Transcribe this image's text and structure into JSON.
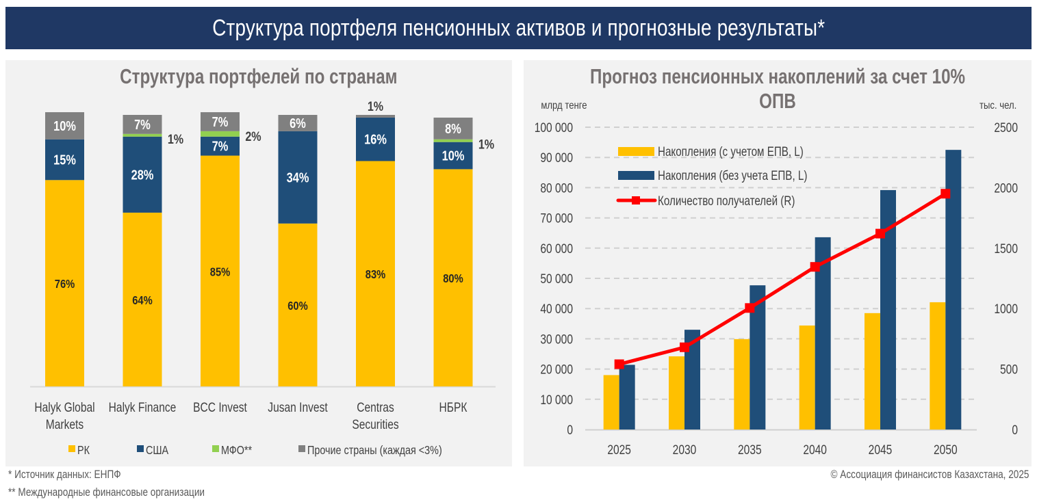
{
  "header": {
    "title": "Структура портфеля пенсионных активов и прогнозные результаты*"
  },
  "colors": {
    "rk": "#ffc000",
    "usa": "#1f4e79",
    "mfo": "#92d050",
    "other": "#808080",
    "line": "#ff0000",
    "banner": "#1f3864"
  },
  "left_panel": {
    "title": "Структура портфелей по странам"
  },
  "right_panel": {
    "title": "Прогноз пенсионных накоплений за счет 10% ОПВ",
    "left_unit": "млрд тенге",
    "right_unit": "тыс. чел."
  },
  "chart_data": [
    {
      "type": "bar",
      "stacked": true,
      "title": "Структура портфелей по странам",
      "categories": [
        [
          "Halyk Global",
          "Markets"
        ],
        [
          "Halyk Finance"
        ],
        [
          "BCC Invest"
        ],
        [
          "Jusan Invest"
        ],
        [
          "Centras",
          "Securities"
        ],
        [
          "НБРК"
        ]
      ],
      "series": [
        {
          "name": "РК",
          "color": "#ffc000",
          "values": [
            76,
            64,
            85,
            60,
            83,
            80
          ],
          "labels": [
            "76%",
            "64%",
            "85%",
            "60%",
            "83%",
            "80%"
          ]
        },
        {
          "name": "США",
          "color": "#1f4e79",
          "values": [
            15,
            28,
            7,
            34,
            16,
            10
          ],
          "labels": [
            "15%",
            "28%",
            "7%",
            "34%",
            "16%",
            "10%"
          ]
        },
        {
          "name": "МФО**",
          "color": "#92d050",
          "values": [
            0,
            1,
            2,
            0,
            0,
            1
          ],
          "labels": [
            "",
            "1%",
            "2%",
            "",
            "",
            "1%"
          ]
        },
        {
          "name": "Прочие страны (каждая <3%)",
          "color": "#808080",
          "values": [
            10,
            7,
            7,
            6,
            1,
            8
          ],
          "labels": [
            "10%",
            "7%",
            "7%",
            "6%",
            "1%",
            "8%"
          ]
        }
      ],
      "ylim": [
        0,
        100
      ],
      "legend": "bottom"
    },
    {
      "type": "bar+line",
      "title": "Прогноз пенсионных накоплений за счет 10% ОПВ",
      "categories": [
        "2025",
        "2030",
        "2035",
        "2040",
        "2045",
        "2050"
      ],
      "series": [
        {
          "name": "Накопления (с учетом ЕПВ, L)",
          "type": "bar",
          "axis": "left",
          "color": "#ffc000",
          "values": [
            18000,
            24200,
            29900,
            34400,
            38500,
            42100
          ]
        },
        {
          "name": "Накопления (без учета ЕПВ, L)",
          "type": "bar",
          "axis": "left",
          "color": "#1f4e79",
          "values": [
            21400,
            33000,
            47700,
            63600,
            79200,
            92500
          ]
        },
        {
          "name": "Количество получателей (R)",
          "type": "line",
          "axis": "right",
          "color": "#ff0000",
          "values": [
            540,
            680,
            1005,
            1345,
            1620,
            1950
          ]
        }
      ],
      "ylabel_left": "млрд тенге",
      "ylabel_right": "тыс. чел.",
      "ylim_left": [
        0,
        100000
      ],
      "ylim_right": [
        0,
        2500
      ],
      "yticks_left": [
        "0",
        "10 000",
        "20 000",
        "30 000",
        "40 000",
        "50 000",
        "60 000",
        "70 000",
        "80 000",
        "90 000",
        "100 000"
      ],
      "yticks_right": [
        "0",
        "500",
        "1000",
        "1500",
        "2000",
        "2500"
      ],
      "grid": true,
      "legend": "top-left"
    }
  ],
  "footer": {
    "note1": "* Источник данных: ЕНПФ",
    "note2": "** Международные финансовые организации",
    "copyright": "© Ассоциация финансистов Казахстана, 2025"
  }
}
